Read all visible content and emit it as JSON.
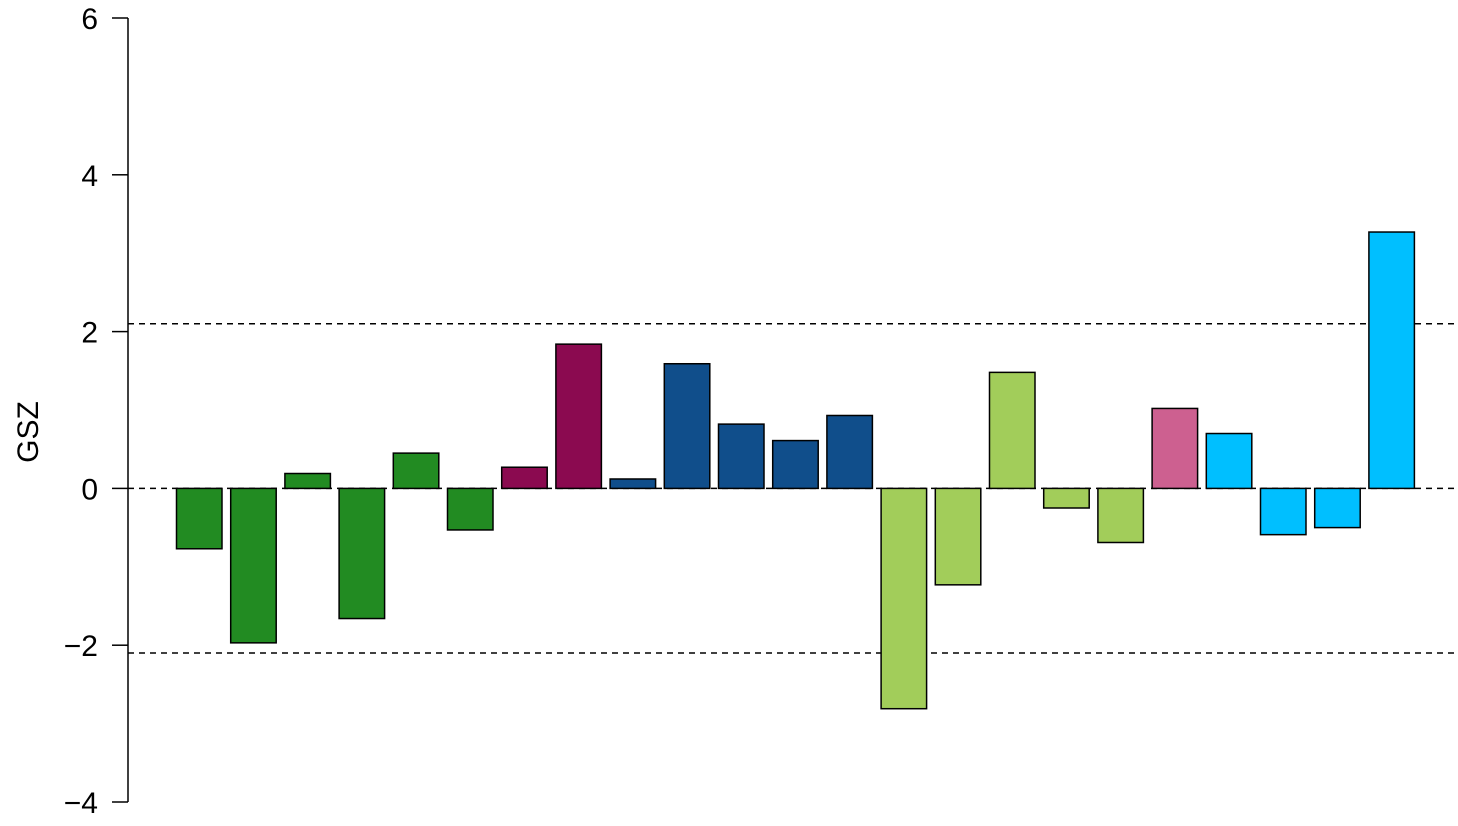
{
  "chart_data": {
    "type": "bar",
    "title": "",
    "xlabel": "",
    "ylabel": "GSZ",
    "ylim": [
      -4,
      6
    ],
    "yticks": [
      -4,
      -2,
      0,
      2,
      4,
      6
    ],
    "ytick_labels": [
      "−4",
      "−2",
      "0",
      "2",
      "4",
      "6"
    ],
    "reference_lines": [
      2.1,
      0,
      -2.1
    ],
    "reference_line_style": "dashed",
    "grid": false,
    "legend": "none",
    "bar_outline_color": "#000000",
    "values": [
      -0.77,
      -1.97,
      0.19,
      -1.66,
      0.45,
      -0.53,
      0.27,
      1.84,
      0.12,
      1.59,
      0.82,
      0.61,
      0.93,
      -2.81,
      -1.23,
      1.48,
      -0.25,
      -0.69,
      1.02,
      0.7,
      -0.59,
      -0.5,
      3.27
    ],
    "colors": [
      "#228B22",
      "#228B22",
      "#228B22",
      "#228B22",
      "#228B22",
      "#228B22",
      "#8B0A50",
      "#8B0A50",
      "#104E8B",
      "#104E8B",
      "#104E8B",
      "#104E8B",
      "#104E8B",
      "#A2CD5A",
      "#A2CD5A",
      "#A2CD5A",
      "#A2CD5A",
      "#A2CD5A",
      "#CD6090",
      "#00BFFF",
      "#00BFFF",
      "#00BFFF",
      "#00BFFF"
    ]
  }
}
